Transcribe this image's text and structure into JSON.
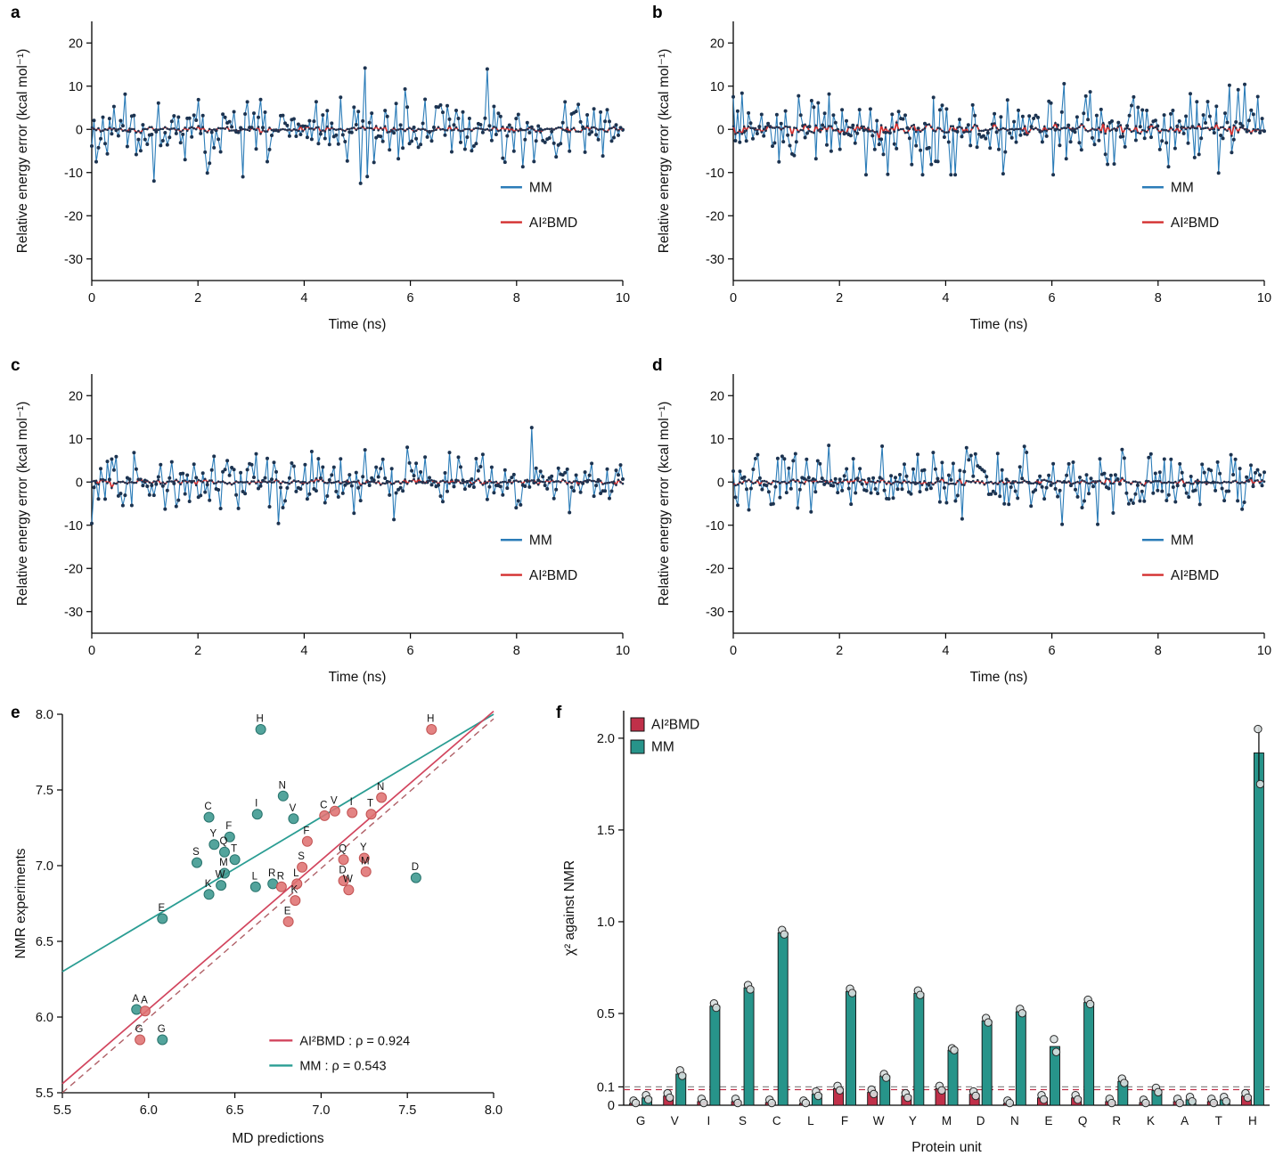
{
  "colors": {
    "mm_line": "#2b7cb8",
    "ai2bmd_line": "#d32e2e",
    "marker_dark": "#1c3350",
    "teal": "#3b978e",
    "teal_stroke": "#27736c",
    "teal_line": "#2a9d93",
    "salmon": "#df7272",
    "salmon_stroke": "#c25353",
    "fit_red": "#d2455e",
    "identity_dash": "#b06067",
    "bar_red": "#c03049",
    "bar_teal": "#27948a",
    "gray_label": "#b5bcbc",
    "black_label": "#1a1a1a",
    "dash_gray": "#8a8a8a",
    "axis": "#000000"
  },
  "chart_data": [
    {
      "type": "line",
      "panel": "a",
      "xlabel": "Time (ns)",
      "ylabel": "Relative energy error (kcal mol⁻¹)",
      "xlim": [
        0,
        10
      ],
      "ylim": [
        -35,
        25
      ],
      "xticks": [
        0,
        2,
        4,
        6,
        8,
        10
      ],
      "yticks": [
        20,
        10,
        0,
        -10,
        -20,
        -30
      ],
      "series": [
        {
          "name": "MM",
          "color_key": "mm_line",
          "width": 1.1,
          "marker_r": 2.0,
          "seed": 11,
          "n": 240,
          "sd": 3.4,
          "spike_prob": 0.06,
          "spike_scale": 2.3,
          "clip": [
            -12.5,
            14.2
          ]
        },
        {
          "name": "AI²BMD",
          "color_key": "ai2bmd_line",
          "width": 1.7,
          "marker_r": 1.3,
          "seed": 12,
          "n": 240,
          "sd": 0.33,
          "spike_prob": 0.03,
          "spike_scale": 1.6,
          "clip": [
            -1.8,
            1.5
          ]
        }
      ],
      "legend": [
        {
          "label": "MM",
          "color_key": "mm_line"
        },
        {
          "label": "AI²BMD",
          "color_key": "ai2bmd_line"
        }
      ]
    },
    {
      "type": "line",
      "panel": "b",
      "xlabel": "Time (ns)",
      "ylabel": "Relative energy error (kcal mol⁻¹)",
      "xlim": [
        0,
        10
      ],
      "ylim": [
        -35,
        25
      ],
      "xticks": [
        0,
        2,
        4,
        6,
        8,
        10
      ],
      "yticks": [
        20,
        10,
        0,
        -10,
        -20,
        -30
      ],
      "series": [
        {
          "name": "MM",
          "color_key": "mm_line",
          "width": 1.1,
          "marker_r": 2.0,
          "seed": 23,
          "n": 245,
          "sd": 3.8,
          "spike_prob": 0.06,
          "spike_scale": 2.2,
          "clip": [
            -10.5,
            17.8
          ]
        },
        {
          "name": "AI²BMD",
          "color_key": "ai2bmd_line",
          "width": 1.7,
          "marker_r": 1.3,
          "seed": 24,
          "n": 245,
          "sd": 0.5,
          "spike_prob": 0.04,
          "spike_scale": 1.8,
          "clip": [
            -2.4,
            1.6
          ]
        }
      ],
      "legend": [
        {
          "label": "MM",
          "color_key": "mm_line"
        },
        {
          "label": "AI²BMD",
          "color_key": "ai2bmd_line"
        }
      ]
    },
    {
      "type": "line",
      "panel": "c",
      "xlabel": "Time (ns)",
      "ylabel": "Relative energy error (kcal mol⁻¹)",
      "xlim": [
        0,
        10
      ],
      "ylim": [
        -35,
        25
      ],
      "xticks": [
        0,
        2,
        4,
        6,
        8,
        10
      ],
      "yticks": [
        20,
        10,
        0,
        -10,
        -20,
        -30
      ],
      "series": [
        {
          "name": "MM",
          "color_key": "mm_line",
          "width": 1.1,
          "marker_r": 2.0,
          "seed": 35,
          "n": 240,
          "sd": 3.1,
          "spike_prob": 0.05,
          "spike_scale": 2.3,
          "clip": [
            -9.6,
            12.6
          ]
        },
        {
          "name": "AI²BMD",
          "color_key": "ai2bmd_line",
          "width": 1.7,
          "marker_r": 1.3,
          "seed": 36,
          "n": 240,
          "sd": 0.3,
          "spike_prob": 0.03,
          "spike_scale": 1.6,
          "clip": [
            -1.5,
            1.4
          ]
        }
      ],
      "legend": [
        {
          "label": "MM",
          "color_key": "mm_line"
        },
        {
          "label": "AI²BMD",
          "color_key": "ai2bmd_line"
        }
      ]
    },
    {
      "type": "line",
      "panel": "d",
      "xlabel": "Time (ns)",
      "ylabel": "Relative energy error (kcal mol⁻¹)",
      "xlim": [
        0,
        10
      ],
      "ylim": [
        -35,
        25
      ],
      "xticks": [
        0,
        2,
        4,
        6,
        8,
        10
      ],
      "yticks": [
        20,
        10,
        0,
        -10,
        -20,
        -30
      ],
      "series": [
        {
          "name": "MM",
          "color_key": "mm_line",
          "width": 1.1,
          "marker_r": 2.0,
          "seed": 47,
          "n": 240,
          "sd": 3.2,
          "spike_prob": 0.05,
          "spike_scale": 2.3,
          "clip": [
            -9.8,
            13.2
          ]
        },
        {
          "name": "AI²BMD",
          "color_key": "ai2bmd_line",
          "width": 1.7,
          "marker_r": 1.3,
          "seed": 48,
          "n": 240,
          "sd": 0.34,
          "spike_prob": 0.03,
          "spike_scale": 1.6,
          "clip": [
            -1.6,
            1.5
          ]
        }
      ],
      "legend": [
        {
          "label": "MM",
          "color_key": "mm_line"
        },
        {
          "label": "AI²BMD",
          "color_key": "ai2bmd_line"
        }
      ]
    },
    {
      "type": "scatter",
      "panel": "e",
      "xlabel": "MD predictions",
      "ylabel": "NMR experiments",
      "xlim": [
        5.5,
        8.0
      ],
      "ylim": [
        5.5,
        8.0
      ],
      "xticks": [
        {
          "v": 5.5,
          "l": "5.5"
        },
        {
          "v": 6.0,
          "l": "6.0"
        },
        {
          "v": 6.5,
          "l": "6.5"
        },
        {
          "v": 7.0,
          "l": "7.0"
        },
        {
          "v": 7.5,
          "l": "7.5"
        },
        {
          "v": 8.0,
          "l": "8.0"
        }
      ],
      "yticks": [
        {
          "v": 5.5,
          "l": "5.5"
        },
        {
          "v": 6.0,
          "l": "6.0"
        },
        {
          "v": 6.5,
          "l": "6.5"
        },
        {
          "v": 7.0,
          "l": "7.0"
        },
        {
          "v": 7.5,
          "l": "7.5"
        },
        {
          "v": 8.0,
          "l": "8.0"
        }
      ],
      "series": [
        {
          "name": "MM",
          "color_key": "teal",
          "stroke_key": "teal_stroke",
          "label_color_key": "gray_label",
          "points": [
            {
              "label": "H",
              "x": 6.65,
              "y": 7.9
            },
            {
              "label": "N",
              "x": 6.78,
              "y": 7.46
            },
            {
              "label": "I",
              "x": 6.63,
              "y": 7.34
            },
            {
              "label": "C",
              "x": 6.35,
              "y": 7.32
            },
            {
              "label": "V",
              "x": 6.84,
              "y": 7.31
            },
            {
              "label": "F",
              "x": 6.47,
              "y": 7.19
            },
            {
              "label": "Y",
              "x": 6.38,
              "y": 7.14
            },
            {
              "label": "Q",
              "x": 6.44,
              "y": 7.09
            },
            {
              "label": "T",
              "x": 6.5,
              "y": 7.04
            },
            {
              "label": "S",
              "x": 6.28,
              "y": 7.02
            },
            {
              "label": "M",
              "x": 6.44,
              "y": 6.95
            },
            {
              "label": "W",
              "x": 6.42,
              "y": 6.87
            },
            {
              "label": "K",
              "x": 6.35,
              "y": 6.81
            },
            {
              "label": "L",
              "x": 6.62,
              "y": 6.86
            },
            {
              "label": "R",
              "x": 6.72,
              "y": 6.88
            },
            {
              "label": "E",
              "x": 6.08,
              "y": 6.65
            },
            {
              "label": "A",
              "x": 5.93,
              "y": 6.05
            },
            {
              "label": "G",
              "x": 6.08,
              "y": 5.85
            },
            {
              "label": "D",
              "x": 7.55,
              "y": 6.92
            }
          ]
        },
        {
          "name": "AI²BMD",
          "color_key": "salmon",
          "stroke_key": "salmon_stroke",
          "label_color_key": "black_label",
          "points": [
            {
              "label": "H",
              "x": 7.64,
              "y": 7.9
            },
            {
              "label": "N",
              "x": 7.35,
              "y": 7.45
            },
            {
              "label": "V",
              "x": 7.08,
              "y": 7.36
            },
            {
              "label": "I",
              "x": 7.18,
              "y": 7.35
            },
            {
              "label": "T",
              "x": 7.29,
              "y": 7.34
            },
            {
              "label": "C",
              "x": 7.02,
              "y": 7.33
            },
            {
              "label": "F",
              "x": 6.92,
              "y": 7.16
            },
            {
              "label": "Q",
              "x": 7.13,
              "y": 7.04
            },
            {
              "label": "Y",
              "x": 7.25,
              "y": 7.05
            },
            {
              "label": "S",
              "x": 6.89,
              "y": 6.99
            },
            {
              "label": "M",
              "x": 7.26,
              "y": 6.96
            },
            {
              "label": "D",
              "x": 7.13,
              "y": 6.9
            },
            {
              "label": "L",
              "x": 6.86,
              "y": 6.88
            },
            {
              "label": "R",
              "x": 6.77,
              "y": 6.86
            },
            {
              "label": "W",
              "x": 7.16,
              "y": 6.84
            },
            {
              "label": "K",
              "x": 6.85,
              "y": 6.77
            },
            {
              "label": "E",
              "x": 6.81,
              "y": 6.63
            },
            {
              "label": "A",
              "x": 5.98,
              "y": 6.04
            },
            {
              "label": "G",
              "x": 5.95,
              "y": 5.85
            }
          ]
        }
      ],
      "fit_lines": [
        {
          "x1": 5.5,
          "y1": 6.3,
          "x2": 8.0,
          "y2": 8.0,
          "color_key": "teal_line",
          "w": 1.8,
          "dash": ""
        },
        {
          "x1": 5.5,
          "y1": 5.56,
          "x2": 8.0,
          "y2": 8.02,
          "color_key": "fit_red",
          "w": 1.7,
          "dash": ""
        },
        {
          "x1": 5.5,
          "y1": 5.5,
          "x2": 8.0,
          "y2": 7.97,
          "color_key": "identity_dash",
          "w": 1.4,
          "dash": "7,5"
        }
      ],
      "legend": [
        {
          "label": "AI²BMD : ρ = 0.924",
          "color_key": "fit_red"
        },
        {
          "label": "MM : ρ = 0.543",
          "color_key": "teal_line"
        }
      ]
    },
    {
      "type": "bar",
      "panel": "f",
      "xlabel": "Protein unit",
      "ylabel": "χ² against NMR",
      "ylim": [
        0,
        2.15
      ],
      "yticks": [
        {
          "v": 0,
          "l": "0"
        },
        {
          "v": 0.1,
          "l": "0.1"
        },
        {
          "v": 0.5,
          "l": "0.5"
        },
        {
          "v": 1.0,
          "l": "1.0"
        },
        {
          "v": 1.5,
          "l": "1.5"
        },
        {
          "v": 2.0,
          "l": "2.0"
        }
      ],
      "categories": [
        "G",
        "V",
        "I",
        "S",
        "C",
        "L",
        "F",
        "W",
        "Y",
        "M",
        "D",
        "N",
        "E",
        "Q",
        "R",
        "K",
        "A",
        "T",
        "H"
      ],
      "series": [
        {
          "name": "AI²BMD",
          "color_key": "bar_red",
          "values": [
            0.01,
            0.05,
            0.02,
            0.02,
            0.015,
            0.01,
            0.09,
            0.07,
            0.05,
            0.09,
            0.06,
            0.01,
            0.04,
            0.04,
            0.02,
            0.015,
            0.02,
            0.02,
            0.05
          ]
        },
        {
          "name": "MM",
          "color_key": "bar_teal",
          "values": [
            0.04,
            0.17,
            0.54,
            0.64,
            0.94,
            0.06,
            0.62,
            0.16,
            0.61,
            0.3,
            0.46,
            0.51,
            0.32,
            0.56,
            0.13,
            0.08,
            0.03,
            0.03,
            1.92
          ]
        }
      ],
      "dashed_lines": [
        {
          "y": 0.1,
          "color_key": "dash_gray"
        },
        {
          "y": 0.085,
          "color_key": "bar_red"
        }
      ],
      "replicate_offset": 0.015,
      "points_override": {
        "MM": {
          "H": [
            2.05,
            1.75
          ],
          "E": [
            0.36,
            0.29
          ],
          "V": [
            0.19,
            0.16
          ],
          "M": [
            0.31,
            0.3
          ],
          "W": [
            0.17,
            0.15
          ]
        }
      },
      "error_bars": [
        {
          "series": "MM",
          "category": "H",
          "lo": 1.75,
          "hi": 2.07
        }
      ],
      "legend": [
        {
          "label": "AI²BMD",
          "color_key": "bar_red"
        },
        {
          "label": "MM",
          "color_key": "bar_teal"
        }
      ]
    }
  ]
}
